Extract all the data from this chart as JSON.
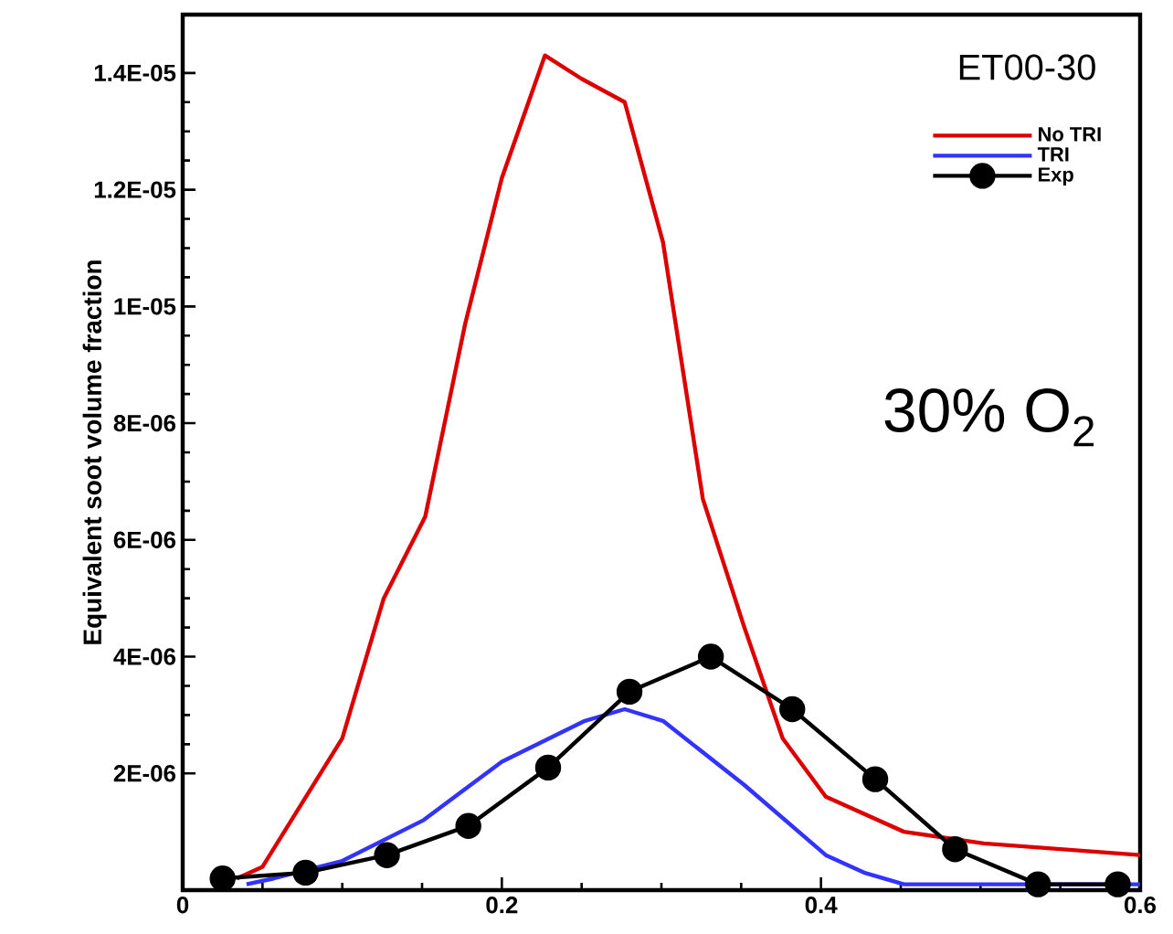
{
  "chart_data": {
    "type": "line",
    "ylabel": "Equivalent soot volume fraction",
    "annotations": [
      "ET00-30",
      "30% O$_{2}$"
    ],
    "xlim": [
      0,
      0.6
    ],
    "ylim": [
      0,
      1.5e-05
    ],
    "xticks": [
      0,
      0.2,
      0.4,
      0.6
    ],
    "yticks": [
      {
        "value": 2e-06,
        "label": "2E-06"
      },
      {
        "value": 4e-06,
        "label": "4E-06"
      },
      {
        "value": 6e-06,
        "label": "6E-06"
      },
      {
        "value": 8e-06,
        "label": "8E-06"
      },
      {
        "value": 1e-05,
        "label": "1E-05"
      },
      {
        "value": 1.2e-05,
        "label": "1.2E-05"
      },
      {
        "value": 1.4e-05,
        "label": "1.4E-05"
      }
    ],
    "legend": "top right",
    "grid": false,
    "series": [
      {
        "name": "No TRI",
        "color": "#dd0000",
        "marker": "none",
        "x": [
          0.034,
          0.05,
          0.1,
          0.126,
          0.152,
          0.177,
          0.2,
          0.227,
          0.25,
          0.277,
          0.301,
          0.326,
          0.352,
          0.376,
          0.403,
          0.452,
          0.502,
          0.6
        ],
        "values": [
          2e-07,
          4e-07,
          2.6e-06,
          5e-06,
          6.4e-06,
          9.7e-06,
          1.22e-05,
          1.43e-05,
          1.39e-05,
          1.35e-05,
          1.11e-05,
          6.7e-06,
          4.5e-06,
          2.6e-06,
          1.6e-06,
          1e-06,
          8e-07,
          6e-07
        ]
      },
      {
        "name": "TRI",
        "color": "#3333ff",
        "marker": "none",
        "x": [
          0.04,
          0.057,
          0.1,
          0.151,
          0.2,
          0.252,
          0.277,
          0.301,
          0.352,
          0.403,
          0.427,
          0.452,
          0.6
        ],
        "values": [
          1e-07,
          2e-07,
          5e-07,
          1.2e-06,
          2.2e-06,
          2.9e-06,
          3.1e-06,
          2.9e-06,
          1.8e-06,
          6e-07,
          3e-07,
          1e-07,
          1e-07
        ]
      },
      {
        "name": "Exp",
        "color": "#000000",
        "marker": "circle",
        "x": [
          0.025,
          0.077,
          0.128,
          0.179,
          0.229,
          0.28,
          0.331,
          0.382,
          0.434,
          0.484,
          0.536,
          0.586
        ],
        "values": [
          2e-07,
          3e-07,
          6e-07,
          1.1e-06,
          2.1e-06,
          3.4e-06,
          4e-06,
          3.1e-06,
          1.9e-06,
          7e-07,
          1e-07,
          1e-07
        ]
      }
    ]
  }
}
